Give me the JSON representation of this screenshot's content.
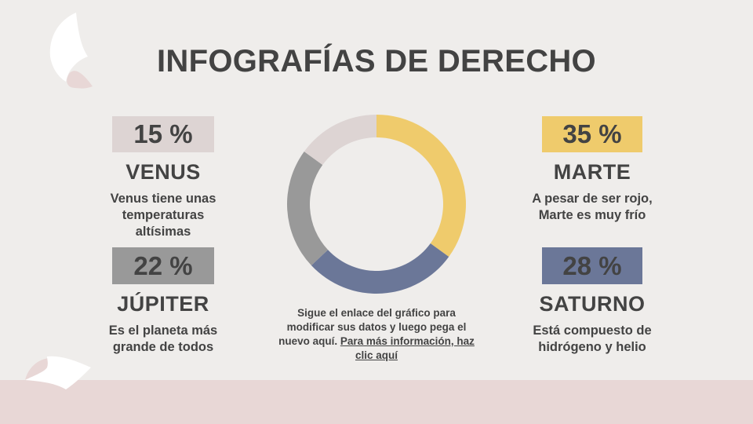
{
  "title": "INFOGRAFÍAS DE DERECHO",
  "colors": {
    "background": "#efedeb",
    "bottom_band": "#e8d7d6",
    "venus": "#ddd4d3",
    "marte": "#efcb6c",
    "jupiter": "#999999",
    "saturno": "#6b7798",
    "text": "#434343"
  },
  "planets": {
    "venus": {
      "percent": "15 %",
      "name": "VENUS",
      "description": "Venus tiene unas temperaturas altísimas"
    },
    "jupiter": {
      "percent": "22 %",
      "name": "JÚPITER",
      "description": "Es el planeta más grande de todos"
    },
    "marte": {
      "percent": "35 %",
      "name": "MARTE",
      "description": "A pesar de ser rojo, Marte es muy frío"
    },
    "saturno": {
      "percent": "28 %",
      "name": "SATURNO",
      "description": "Está compuesto de hidrógeno y helio"
    }
  },
  "caption": {
    "text": "Sigue el enlace del gráfico para modificar sus datos y luego pega el nuevo aquí. ",
    "link": "Para más información, haz clic aquí"
  },
  "chart_data": {
    "type": "pie",
    "subtype": "donut",
    "title": "",
    "categories": [
      "Marte",
      "Saturno",
      "Júpiter",
      "Venus"
    ],
    "values": [
      35,
      28,
      22,
      15
    ],
    "colors": [
      "#efcb6c",
      "#6b7798",
      "#999999",
      "#ddd4d3"
    ],
    "start_angle": "12 o'clock",
    "direction": "clockwise",
    "legend": "none (labels in side cards)"
  }
}
